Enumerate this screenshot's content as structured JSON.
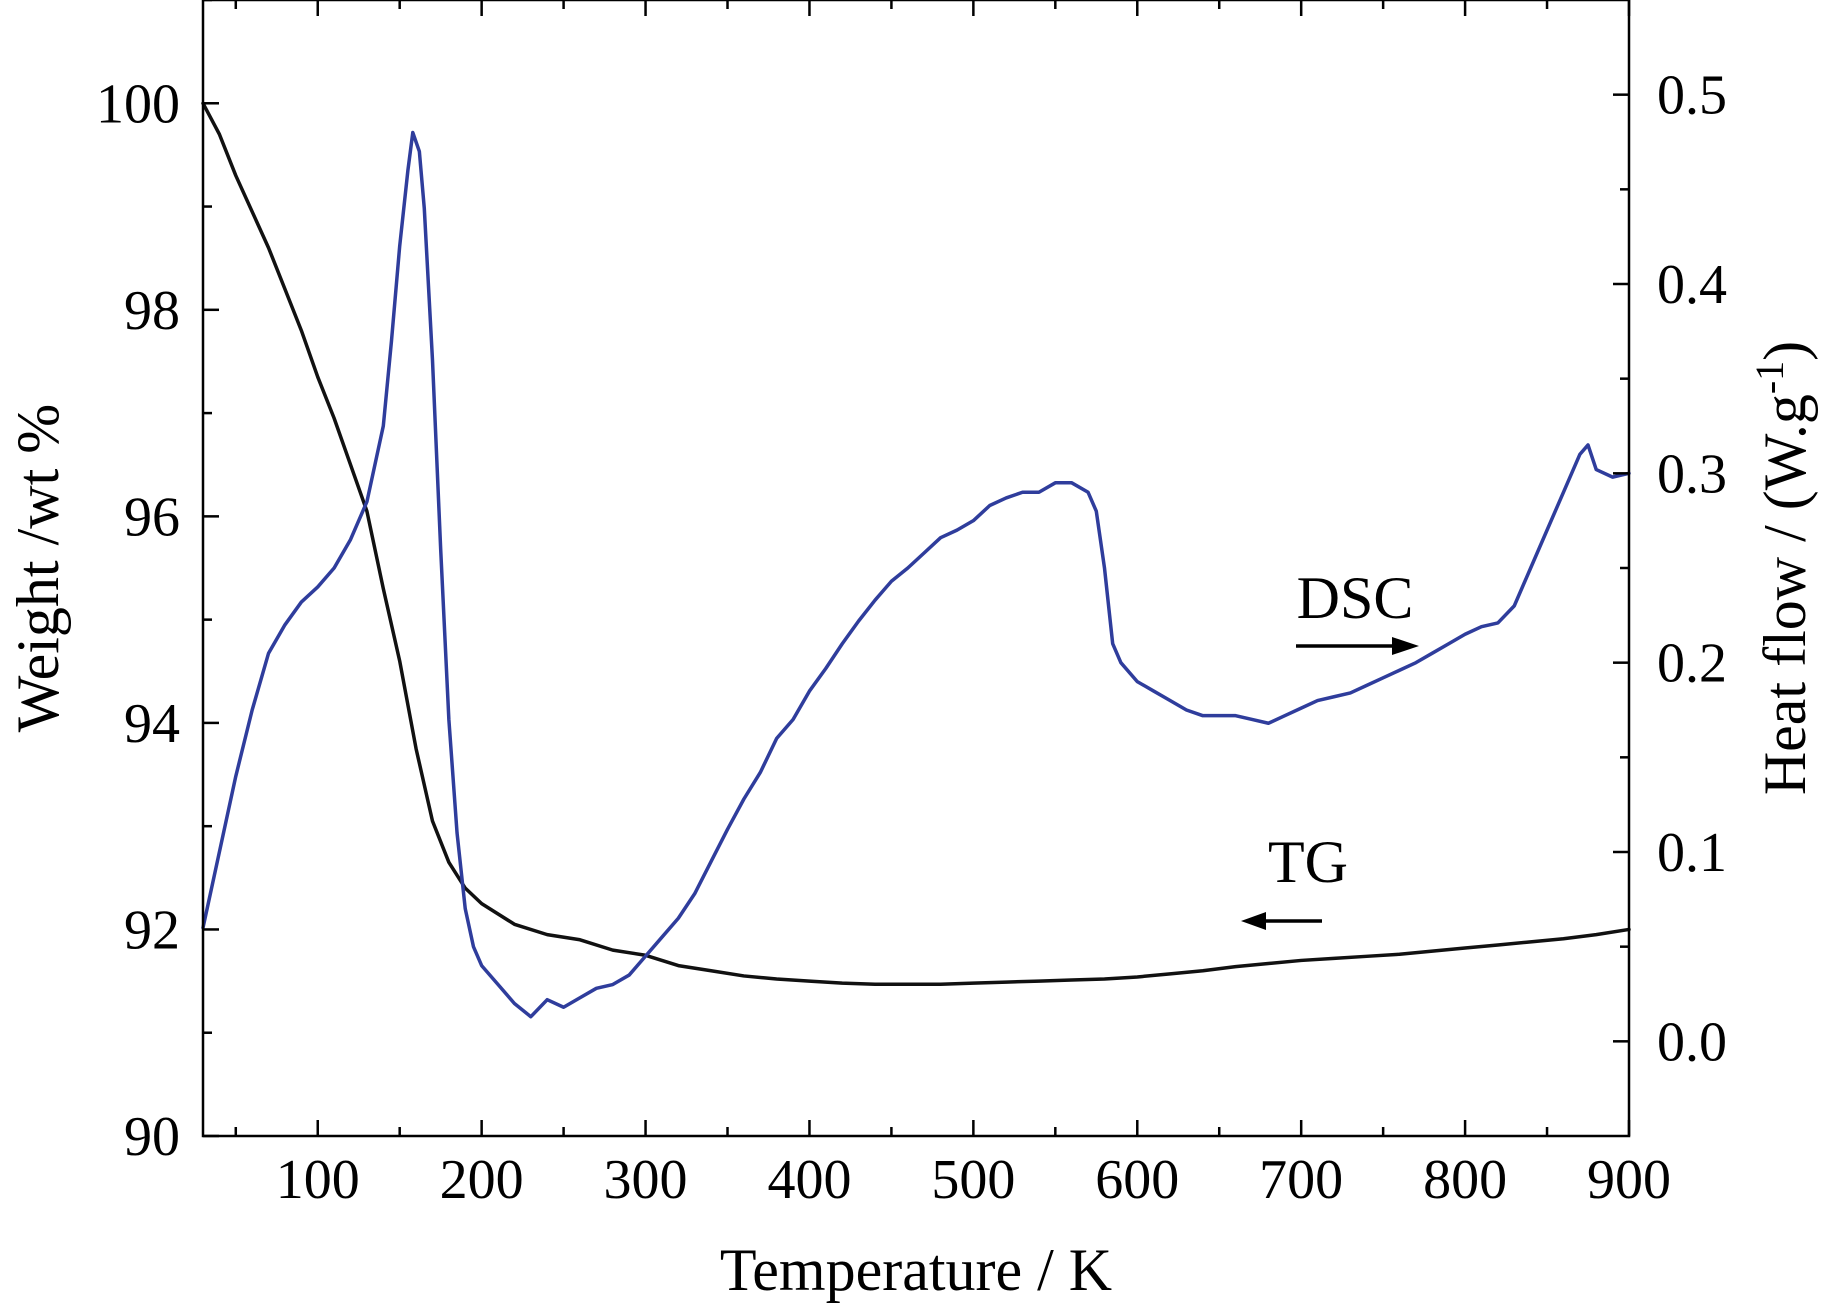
{
  "chart_data": {
    "type": "line",
    "xlabel": "Temperature / K",
    "ylabel_left": "Weight /wt %",
    "ylabel_right_main": "Heat flow / (W.g",
    "ylabel_right_sup": "-1",
    "ylabel_right_end": ")",
    "xlim": [
      30,
      900
    ],
    "ylim_left": [
      90,
      101
    ],
    "ylim_right": [
      -0.05,
      0.55
    ],
    "x_ticks": [
      100,
      200,
      300,
      400,
      500,
      600,
      700,
      800,
      900
    ],
    "x_tick_labels": [
      "100",
      "200",
      "300",
      "400",
      "500",
      "600",
      "700",
      "800",
      "900"
    ],
    "y_left_ticks": [
      90,
      92,
      94,
      96,
      98,
      100
    ],
    "y_left_tick_labels": [
      "90",
      "92",
      "94",
      "96",
      "98",
      "100"
    ],
    "y_right_ticks": [
      0.0,
      0.1,
      0.2,
      0.3,
      0.4,
      0.5
    ],
    "y_right_tick_labels": [
      "0.0",
      "0.1",
      "0.2",
      "0.3",
      "0.4",
      "0.5"
    ],
    "grid": false,
    "series": [
      {
        "name": "TG",
        "axis": "left",
        "color": "#111111",
        "points": [
          [
            30,
            100.0
          ],
          [
            40,
            99.7
          ],
          [
            50,
            99.3
          ],
          [
            60,
            98.95
          ],
          [
            70,
            98.6
          ],
          [
            80,
            98.2
          ],
          [
            90,
            97.8
          ],
          [
            100,
            97.35
          ],
          [
            110,
            96.95
          ],
          [
            120,
            96.5
          ],
          [
            130,
            96.05
          ],
          [
            140,
            95.3
          ],
          [
            150,
            94.6
          ],
          [
            160,
            93.75
          ],
          [
            170,
            93.05
          ],
          [
            180,
            92.65
          ],
          [
            190,
            92.4
          ],
          [
            200,
            92.25
          ],
          [
            220,
            92.05
          ],
          [
            240,
            91.95
          ],
          [
            260,
            91.9
          ],
          [
            280,
            91.8
          ],
          [
            300,
            91.75
          ],
          [
            320,
            91.65
          ],
          [
            340,
            91.6
          ],
          [
            360,
            91.55
          ],
          [
            380,
            91.52
          ],
          [
            400,
            91.5
          ],
          [
            420,
            91.48
          ],
          [
            440,
            91.47
          ],
          [
            460,
            91.47
          ],
          [
            480,
            91.47
          ],
          [
            500,
            91.48
          ],
          [
            520,
            91.49
          ],
          [
            540,
            91.5
          ],
          [
            560,
            91.51
          ],
          [
            580,
            91.52
          ],
          [
            600,
            91.54
          ],
          [
            620,
            91.57
          ],
          [
            640,
            91.6
          ],
          [
            660,
            91.64
          ],
          [
            680,
            91.67
          ],
          [
            700,
            91.7
          ],
          [
            720,
            91.72
          ],
          [
            740,
            91.74
          ],
          [
            760,
            91.76
          ],
          [
            780,
            91.79
          ],
          [
            800,
            91.82
          ],
          [
            820,
            91.85
          ],
          [
            840,
            91.88
          ],
          [
            860,
            91.91
          ],
          [
            880,
            91.95
          ],
          [
            900,
            92.0
          ]
        ]
      },
      {
        "name": "DSC",
        "axis": "right",
        "color": "#2f3d9c",
        "points": [
          [
            30,
            0.06
          ],
          [
            40,
            0.1
          ],
          [
            50,
            0.14
          ],
          [
            60,
            0.175
          ],
          [
            70,
            0.205
          ],
          [
            80,
            0.22
          ],
          [
            90,
            0.232
          ],
          [
            100,
            0.24
          ],
          [
            110,
            0.25
          ],
          [
            120,
            0.265
          ],
          [
            130,
            0.285
          ],
          [
            140,
            0.325
          ],
          [
            145,
            0.37
          ],
          [
            150,
            0.42
          ],
          [
            155,
            0.46
          ],
          [
            158,
            0.48
          ],
          [
            162,
            0.47
          ],
          [
            165,
            0.44
          ],
          [
            170,
            0.36
          ],
          [
            175,
            0.26
          ],
          [
            180,
            0.17
          ],
          [
            185,
            0.11
          ],
          [
            190,
            0.07
          ],
          [
            195,
            0.05
          ],
          [
            200,
            0.04
          ],
          [
            210,
            0.03
          ],
          [
            220,
            0.02
          ],
          [
            230,
            0.013
          ],
          [
            240,
            0.022
          ],
          [
            250,
            0.018
          ],
          [
            260,
            0.023
          ],
          [
            270,
            0.028
          ],
          [
            280,
            0.03
          ],
          [
            290,
            0.035
          ],
          [
            300,
            0.045
          ],
          [
            310,
            0.055
          ],
          [
            320,
            0.065
          ],
          [
            330,
            0.078
          ],
          [
            340,
            0.095
          ],
          [
            350,
            0.112
          ],
          [
            360,
            0.128
          ],
          [
            370,
            0.142
          ],
          [
            380,
            0.16
          ],
          [
            390,
            0.17
          ],
          [
            400,
            0.185
          ],
          [
            410,
            0.197
          ],
          [
            420,
            0.21
          ],
          [
            430,
            0.222
          ],
          [
            440,
            0.233
          ],
          [
            450,
            0.243
          ],
          [
            460,
            0.25
          ],
          [
            470,
            0.258
          ],
          [
            480,
            0.266
          ],
          [
            490,
            0.27
          ],
          [
            500,
            0.275
          ],
          [
            510,
            0.283
          ],
          [
            520,
            0.287
          ],
          [
            530,
            0.29
          ],
          [
            540,
            0.29
          ],
          [
            550,
            0.295
          ],
          [
            560,
            0.295
          ],
          [
            570,
            0.29
          ],
          [
            575,
            0.28
          ],
          [
            580,
            0.25
          ],
          [
            585,
            0.21
          ],
          [
            590,
            0.2
          ],
          [
            600,
            0.19
          ],
          [
            610,
            0.185
          ],
          [
            620,
            0.18
          ],
          [
            630,
            0.175
          ],
          [
            640,
            0.172
          ],
          [
            650,
            0.172
          ],
          [
            660,
            0.172
          ],
          [
            670,
            0.17
          ],
          [
            680,
            0.168
          ],
          [
            690,
            0.172
          ],
          [
            700,
            0.176
          ],
          [
            710,
            0.18
          ],
          [
            720,
            0.182
          ],
          [
            730,
            0.184
          ],
          [
            740,
            0.188
          ],
          [
            750,
            0.192
          ],
          [
            760,
            0.196
          ],
          [
            770,
            0.2
          ],
          [
            780,
            0.205
          ],
          [
            790,
            0.21
          ],
          [
            800,
            0.215
          ],
          [
            810,
            0.219
          ],
          [
            820,
            0.221
          ],
          [
            830,
            0.23
          ],
          [
            840,
            0.25
          ],
          [
            850,
            0.27
          ],
          [
            860,
            0.29
          ],
          [
            870,
            0.31
          ],
          [
            875,
            0.315
          ],
          [
            880,
            0.302
          ],
          [
            890,
            0.298
          ],
          [
            900,
            0.3
          ]
        ]
      }
    ],
    "annotations": [
      {
        "text": "DSC",
        "arrow": "right"
      },
      {
        "text": "TG",
        "arrow": "left"
      }
    ]
  }
}
